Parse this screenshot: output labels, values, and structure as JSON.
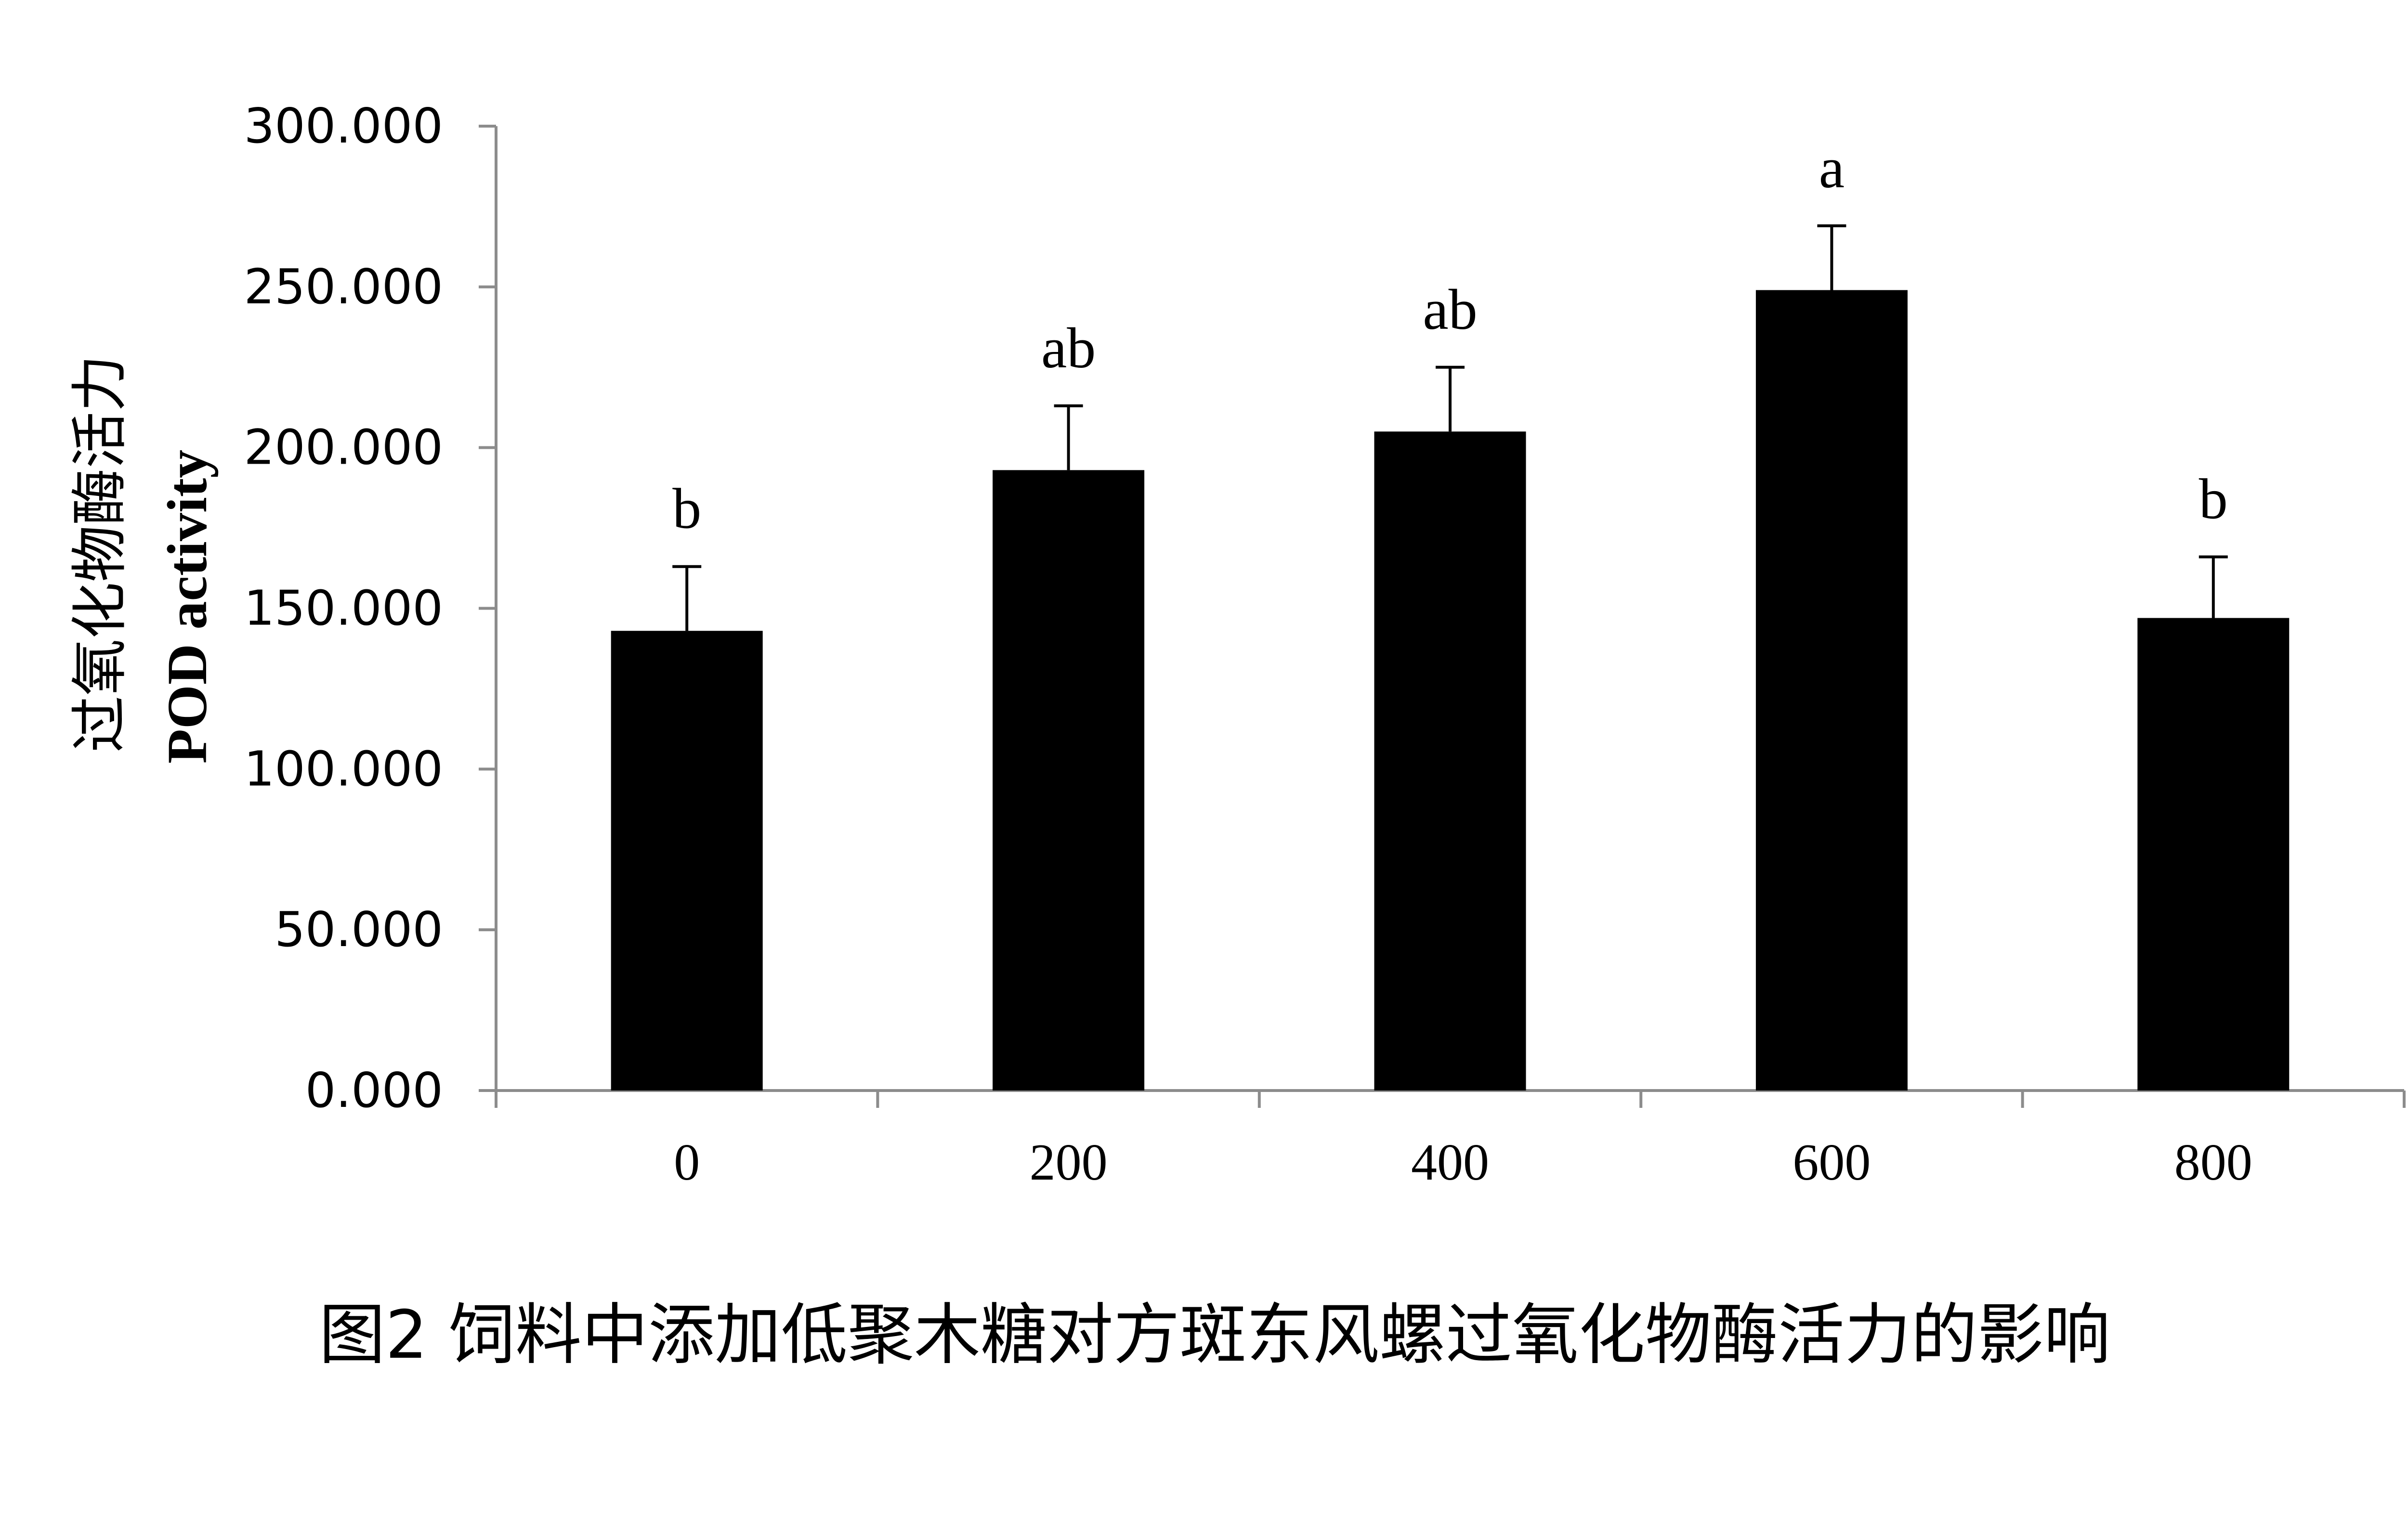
{
  "chart_data": {
    "type": "bar",
    "categories": [
      "0",
      "200",
      "400",
      "600",
      "800"
    ],
    "values": [
      143,
      193,
      205,
      249,
      147
    ],
    "error": [
      20,
      20,
      20,
      20,
      19
    ],
    "significance": [
      "b",
      "ab",
      "ab",
      "a",
      "b"
    ],
    "ylim": [
      0,
      300
    ],
    "yticks": [
      "0.000",
      "50.000",
      "100.000",
      "150.000",
      "200.000",
      "250.000",
      "300.000"
    ],
    "ylabel_cn": "过氧化物酶活力",
    "ylabel_en": "POD activity",
    "bar_color": "#000000",
    "grid": false
  },
  "caption": "图2 饲料中添加低聚木糖对方斑东风螺过氧化物酶活力的影响"
}
